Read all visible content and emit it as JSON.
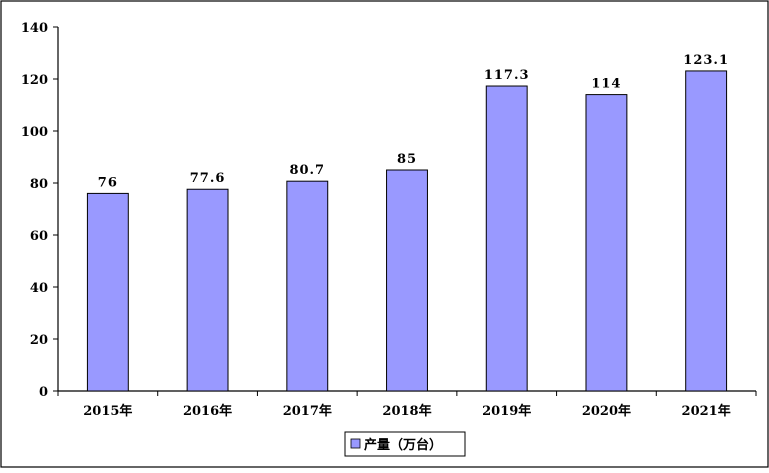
{
  "chart_data": {
    "type": "bar",
    "categories": [
      "2015年",
      "2016年",
      "2017年",
      "2018年",
      "2019年",
      "2020年",
      "2021年"
    ],
    "series": [
      {
        "name": "产量（万台）",
        "values": [
          76,
          77.6,
          80.7,
          85,
          117.3,
          114,
          123.1
        ],
        "labels": [
          "76",
          "77.6",
          "80.7",
          "85",
          "117.3",
          "114",
          "123.1"
        ],
        "color": "#9999ff"
      }
    ],
    "ylim": [
      0,
      140
    ],
    "yticks": [
      "0",
      "20",
      "40",
      "60",
      "80",
      "100",
      "120",
      "140"
    ],
    "grid": false,
    "legend_position": "bottom"
  }
}
